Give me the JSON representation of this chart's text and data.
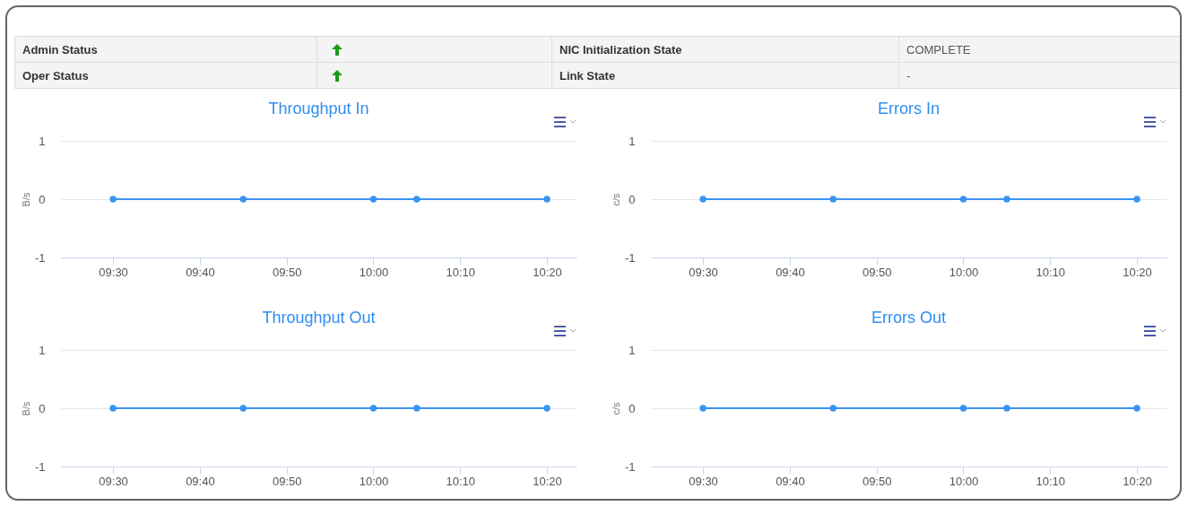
{
  "chart_data": [
    {
      "type": "other",
      "annotations": [
        "Admin Status",
        "NIC Initialization State",
        "COMPLETE",
        "Oper Status",
        "Link State",
        "-"
      ]
    },
    {
      "type": "line",
      "title": "Throughput In",
      "ylabel": "B/s",
      "x": [
        9.5,
        9.75,
        10,
        10.0833,
        10.3333
      ],
      "xlim": [
        9.4,
        10.39
      ],
      "xticks": [
        {
          "value": 9.5,
          "label": "09:30"
        },
        {
          "value": 9.6667,
          "label": "09:40"
        },
        {
          "value": 9.8333,
          "label": "09:50"
        },
        {
          "value": 10,
          "label": "10:00"
        },
        {
          "value": 10.1667,
          "label": "10:10"
        },
        {
          "value": 10.3333,
          "label": "10:20"
        }
      ],
      "ylim": [
        -1,
        1
      ],
      "yticks": [
        -1,
        0,
        1
      ],
      "grid": "y",
      "marker": "circle",
      "series": [
        {
          "color": "#3a93f0",
          "values": [
            0,
            0,
            0,
            0,
            0
          ]
        }
      ]
    },
    {
      "type": "line",
      "title": "Errors In",
      "ylabel": "c/s",
      "x": [
        9.5,
        9.75,
        10,
        10.0833,
        10.3333
      ],
      "xlim": [
        9.4,
        10.39
      ],
      "xticks": [
        {
          "value": 9.5,
          "label": "09:30"
        },
        {
          "value": 9.6667,
          "label": "09:40"
        },
        {
          "value": 9.8333,
          "label": "09:50"
        },
        {
          "value": 10,
          "label": "10:00"
        },
        {
          "value": 10.1667,
          "label": "10:10"
        },
        {
          "value": 10.3333,
          "label": "10:20"
        }
      ],
      "ylim": [
        -1,
        1
      ],
      "yticks": [
        -1,
        0,
        1
      ],
      "grid": "y",
      "marker": "circle",
      "series": [
        {
          "color": "#3a93f0",
          "values": [
            0,
            0,
            0,
            0,
            0
          ]
        }
      ]
    },
    {
      "type": "line",
      "title": "Throughput Out",
      "ylabel": "B/s",
      "x": [
        9.5,
        9.75,
        10,
        10.0833,
        10.3333
      ],
      "xlim": [
        9.4,
        10.39
      ],
      "xticks": [
        {
          "value": 9.5,
          "label": "09:30"
        },
        {
          "value": 9.6667,
          "label": "09:40"
        },
        {
          "value": 9.8333,
          "label": "09:50"
        },
        {
          "value": 10,
          "label": "10:00"
        },
        {
          "value": 10.1667,
          "label": "10:10"
        },
        {
          "value": 10.3333,
          "label": "10:20"
        }
      ],
      "ylim": [
        -1,
        1
      ],
      "yticks": [
        -1,
        0,
        1
      ],
      "grid": "y",
      "marker": "circle",
      "series": [
        {
          "color": "#3a93f0",
          "values": [
            0,
            0,
            0,
            0,
            0
          ]
        }
      ]
    },
    {
      "type": "line",
      "title": "Errors Out",
      "ylabel": "c/s",
      "x": [
        9.5,
        9.75,
        10,
        10.0833,
        10.3333
      ],
      "xlim": [
        9.4,
        10.39
      ],
      "xticks": [
        {
          "value": 9.5,
          "label": "09:30"
        },
        {
          "value": 9.6667,
          "label": "09:40"
        },
        {
          "value": 9.8333,
          "label": "09:50"
        },
        {
          "value": 10,
          "label": "10:00"
        },
        {
          "value": 10.1667,
          "label": "10:10"
        },
        {
          "value": 10.3333,
          "label": "10:20"
        }
      ],
      "ylim": [
        -1,
        1
      ],
      "yticks": [
        -1,
        0,
        1
      ],
      "grid": "y",
      "marker": "circle",
      "series": [
        {
          "color": "#3a93f0",
          "values": [
            0,
            0,
            0,
            0,
            0
          ]
        }
      ]
    }
  ]
}
